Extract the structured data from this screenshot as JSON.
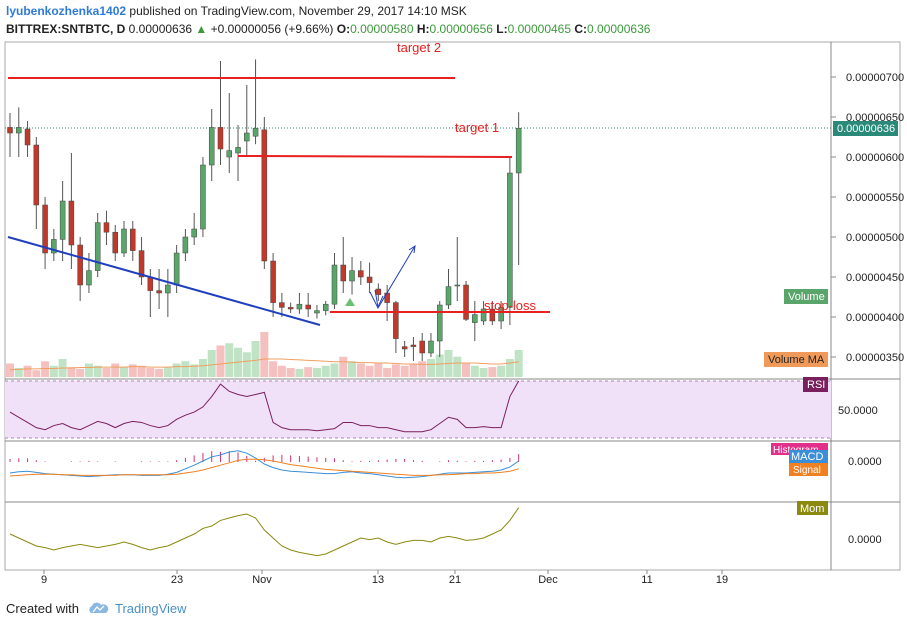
{
  "header": {
    "author": "lyubenkozhenka1402",
    "published_text": " published on TradingView.com, November 29, 2017 14:10 MSK",
    "symbol": "BITTREX:SNTBTC, D",
    "last_price": "0.00000636",
    "change_arrow": "▲",
    "change": "+0.00000056 (+9.66%)",
    "o_label": "O:",
    "o_value": "0.00000580",
    "h_label": "H:",
    "h_value": "0.00000656",
    "l_label": "L:",
    "l_value": "0.00000465",
    "c_label": "C:",
    "c_value": "0.00000636"
  },
  "footer": {
    "created_with": "Created with",
    "brand": "TradingView"
  },
  "colors": {
    "up": "#5aa66a",
    "down": "#c0392b",
    "trend_line": "#1f3fbf",
    "level_line": "#e82020",
    "rsi_fill": "#f0e0f8",
    "rsi_line": "#7a1f5e",
    "macd_line": "#3a8fd8",
    "signal_line": "#f08020",
    "mom_line": "#8a8a10"
  },
  "chart_data": {
    "type": "candlestick",
    "y_ticks": [
      "0.00000700",
      "0.00000650",
      "0.00000600",
      "0.00000550",
      "0.00000500",
      "0.00000450",
      "0.00000400",
      "0.00000350"
    ],
    "ylim": [
      3.21e-06,
      7.8e-06
    ],
    "last_price_label": "0.00000636",
    "x_ticks": [
      "9",
      "23",
      "Nov",
      "13",
      "21",
      "Dec",
      "11",
      "19"
    ],
    "annotations": {
      "target2": {
        "text": "target 2",
        "price": 7e-06
      },
      "target1": {
        "text": "target 1",
        "price": 6.02e-06
      },
      "stop_loss": {
        "text": "stop-loss",
        "price": 4.06e-06
      }
    },
    "candles": [
      {
        "o": 6.37e-06,
        "h": 6.55e-06,
        "l": 6e-06,
        "c": 6.3e-06
      },
      {
        "o": 6.3e-06,
        "h": 6.62e-06,
        "l": 6e-06,
        "c": 6.37e-06
      },
      {
        "o": 6.35e-06,
        "h": 6.45e-06,
        "l": 6e-06,
        "c": 6.15e-06
      },
      {
        "o": 6.15e-06,
        "h": 6.25e-06,
        "l": 5.1e-06,
        "c": 5.4e-06
      },
      {
        "o": 5.4e-06,
        "h": 5.5e-06,
        "l": 4.6e-06,
        "c": 4.8e-06
      },
      {
        "o": 4.8e-06,
        "h": 5.1e-06,
        "l": 4.7e-06,
        "c": 4.97e-06
      },
      {
        "o": 4.97e-06,
        "h": 5.7e-06,
        "l": 4.7e-06,
        "c": 5.45e-06
      },
      {
        "o": 5.45e-06,
        "h": 6.05e-06,
        "l": 4.6e-06,
        "c": 4.9e-06
      },
      {
        "o": 4.9e-06,
        "h": 5e-06,
        "l": 4.2e-06,
        "c": 4.4e-06
      },
      {
        "o": 4.4e-06,
        "h": 4.8e-06,
        "l": 4.3e-06,
        "c": 4.58e-06
      },
      {
        "o": 4.58e-06,
        "h": 5.3e-06,
        "l": 4.5e-06,
        "c": 5.18e-06
      },
      {
        "o": 5.18e-06,
        "h": 5.33e-06,
        "l": 4.9e-06,
        "c": 5.06e-06
      },
      {
        "o": 5.06e-06,
        "h": 5.15e-06,
        "l": 4.7e-06,
        "c": 4.8e-06
      },
      {
        "o": 4.8e-06,
        "h": 5.2e-06,
        "l": 4.75e-06,
        "c": 5.1e-06
      },
      {
        "o": 5.1e-06,
        "h": 5.2e-06,
        "l": 4.7e-06,
        "c": 4.83e-06
      },
      {
        "o": 4.83e-06,
        "h": 5e-06,
        "l": 4.4e-06,
        "c": 4.5e-06
      },
      {
        "o": 4.5e-06,
        "h": 4.6e-06,
        "l": 4e-06,
        "c": 4.33e-06
      },
      {
        "o": 4.33e-06,
        "h": 4.6e-06,
        "l": 4.1e-06,
        "c": 4.3e-06
      },
      {
        "o": 4.3e-06,
        "h": 4.6e-06,
        "l": 4e-06,
        "c": 4.4e-06
      },
      {
        "o": 4.4e-06,
        "h": 4.9e-06,
        "l": 4.3e-06,
        "c": 4.8e-06
      },
      {
        "o": 4.8e-06,
        "h": 5.1e-06,
        "l": 4.7e-06,
        "c": 5e-06
      },
      {
        "o": 5e-06,
        "h": 5.3e-06,
        "l": 4.9e-06,
        "c": 5.1e-06
      },
      {
        "o": 5.1e-06,
        "h": 6e-06,
        "l": 5e-06,
        "c": 5.9e-06
      },
      {
        "o": 5.9e-06,
        "h": 6.6e-06,
        "l": 5.7e-06,
        "c": 6.37e-06
      },
      {
        "o": 6.37e-06,
        "h": 7.2e-06,
        "l": 5.9e-06,
        "c": 6.1e-06
      },
      {
        "o": 6e-06,
        "h": 6.8e-06,
        "l": 5.8e-06,
        "c": 6.08e-06
      },
      {
        "o": 6.05e-06,
        "h": 6.4e-06,
        "l": 5.7e-06,
        "c": 6.12e-06
      },
      {
        "o": 6.2e-06,
        "h": 6.9e-06,
        "l": 6e-06,
        "c": 6.3e-06
      },
      {
        "o": 6.26e-06,
        "h": 7.22e-06,
        "l": 6.16e-06,
        "c": 6.36e-06
      },
      {
        "o": 6.34e-06,
        "h": 6.5e-06,
        "l": 4.6e-06,
        "c": 4.7e-06
      },
      {
        "o": 4.7e-06,
        "h": 4.8e-06,
        "l": 4e-06,
        "c": 4.18e-06
      },
      {
        "o": 4.18e-06,
        "h": 4.3e-06,
        "l": 4e-06,
        "c": 4.12e-06
      },
      {
        "o": 4.12e-06,
        "h": 4.18e-06,
        "l": 4.05e-06,
        "c": 4.1e-06
      },
      {
        "o": 4.1e-06,
        "h": 4.3e-06,
        "l": 4.04e-06,
        "c": 4.16e-06
      },
      {
        "o": 4.15e-06,
        "h": 4.3e-06,
        "l": 4e-06,
        "c": 4.1e-06
      },
      {
        "o": 4.05e-06,
        "h": 4.15e-06,
        "l": 3.98e-06,
        "c": 4.08e-06
      },
      {
        "o": 4.08e-06,
        "h": 4.2e-06,
        "l": 4.02e-06,
        "c": 4.16e-06
      },
      {
        "o": 4.16e-06,
        "h": 4.8e-06,
        "l": 4.1e-06,
        "c": 4.65e-06
      },
      {
        "o": 4.65e-06,
        "h": 5e-06,
        "l": 4.3e-06,
        "c": 4.45e-06
      },
      {
        "o": 4.45e-06,
        "h": 4.75e-06,
        "l": 4.28e-06,
        "c": 4.58e-06
      },
      {
        "o": 4.58e-06,
        "h": 4.7e-06,
        "l": 4.4e-06,
        "c": 4.5e-06
      },
      {
        "o": 4.5e-06,
        "h": 4.68e-06,
        "l": 4.3e-06,
        "c": 4.43e-06
      },
      {
        "o": 4.35e-06,
        "h": 4.42e-06,
        "l": 4.2e-06,
        "c": 4.28e-06
      },
      {
        "o": 4.3e-06,
        "h": 4.4e-06,
        "l": 3.95e-06,
        "c": 4.18e-06
      },
      {
        "o": 4.18e-06,
        "h": 4.2e-06,
        "l": 3.55e-06,
        "c": 3.73e-06
      },
      {
        "o": 3.63e-06,
        "h": 3.7e-06,
        "l": 3.5e-06,
        "c": 3.6e-06
      },
      {
        "o": 3.65e-06,
        "h": 3.75e-06,
        "l": 3.45e-06,
        "c": 3.63e-06
      },
      {
        "o": 3.7e-06,
        "h": 3.8e-06,
        "l": 3.45e-06,
        "c": 3.55e-06
      },
      {
        "o": 3.55e-06,
        "h": 3.8e-06,
        "l": 3.5e-06,
        "c": 3.7e-06
      },
      {
        "o": 3.7e-06,
        "h": 4.2e-06,
        "l": 3.5e-06,
        "c": 4.15e-06
      },
      {
        "o": 4.15e-06,
        "h": 4.6e-06,
        "l": 4.1e-06,
        "c": 4.38e-06
      },
      {
        "o": 4.4e-06,
        "h": 5e-06,
        "l": 4.2e-06,
        "c": 4.4e-06
      },
      {
        "o": 4.4e-06,
        "h": 4.45e-06,
        "l": 3.95e-06,
        "c": 3.97e-06
      },
      {
        "o": 3.93e-06,
        "h": 4.2e-06,
        "l": 3.7e-06,
        "c": 4.03e-06
      },
      {
        "o": 3.95e-06,
        "h": 4.2e-06,
        "l": 3.9e-06,
        "c": 4.1e-06
      },
      {
        "o": 4.1e-06,
        "h": 4.2e-06,
        "l": 3.9e-06,
        "c": 3.95e-06
      },
      {
        "o": 3.95e-06,
        "h": 4.2e-06,
        "l": 3.85e-06,
        "c": 4.12e-06
      },
      {
        "o": 4.12e-06,
        "h": 6e-06,
        "l": 3.9e-06,
        "c": 5.8e-06
      },
      {
        "o": 5.8e-06,
        "h": 6.56e-06,
        "l": 4.65e-06,
        "c": 6.36e-06
      }
    ],
    "volume": [
      30,
      20,
      25,
      15,
      35,
      25,
      40,
      22,
      18,
      30,
      25,
      20,
      30,
      22,
      28,
      25,
      20,
      18,
      22,
      30,
      35,
      28,
      40,
      60,
      70,
      75,
      65,
      55,
      80,
      100,
      35,
      25,
      20,
      18,
      22,
      20,
      25,
      30,
      45,
      35,
      30,
      25,
      30,
      20,
      28,
      25,
      30,
      35,
      40,
      50,
      60,
      45,
      30,
      25,
      20,
      22,
      25,
      40,
      60
    ],
    "volume_ma": [
      16,
      17,
      18,
      18,
      19,
      19,
      20,
      20,
      21,
      21,
      22,
      22,
      22,
      22,
      23,
      23,
      22,
      22,
      22,
      23,
      23,
      24,
      25,
      27,
      29,
      31,
      33,
      35,
      37,
      40,
      40,
      40,
      39,
      38,
      37,
      36,
      35,
      34,
      34,
      33,
      32,
      32,
      31,
      31,
      30,
      29,
      29,
      28,
      28,
      29,
      30,
      31,
      31,
      31,
      30,
      29,
      29,
      31,
      34
    ],
    "indicators": {
      "volume_label": "Volume",
      "volume_ma_label": "Volume MA",
      "rsi_label": "RSI",
      "rsi_tick": "50.0000",
      "rsi": [
        55,
        50,
        45,
        40,
        38,
        42,
        44,
        40,
        38,
        42,
        46,
        44,
        40,
        44,
        46,
        45,
        42,
        40,
        42,
        48,
        52,
        55,
        60,
        70,
        82,
        75,
        72,
        70,
        72,
        74,
        45,
        40,
        38,
        38,
        38,
        37,
        38,
        39,
        45,
        45,
        42,
        42,
        40,
        40,
        38,
        36,
        36,
        36,
        38,
        44,
        50,
        48,
        40,
        40,
        41,
        40,
        40,
        70,
        85
      ],
      "macd_tick": "0.0000",
      "macd_labels": [
        "Histogram",
        "MACD",
        "Signal"
      ],
      "macd": [
        -5,
        -3,
        -2,
        -4,
        -6,
        -7,
        -8,
        -9,
        -10,
        -11,
        -10,
        -9,
        -8,
        -8,
        -8,
        -9,
        -9,
        -9,
        -7,
        -4,
        2,
        8,
        15,
        22,
        25,
        30,
        32,
        28,
        20,
        10,
        4,
        0,
        -2,
        -3,
        -4,
        -5,
        -6,
        -6,
        -4,
        -3,
        -5,
        -6,
        -8,
        -10,
        -12,
        -13,
        -12,
        -11,
        -9,
        -7,
        -5,
        -5,
        -5,
        -4,
        -3,
        -2,
        0,
        5,
        15
      ],
      "signal": [
        -10,
        -9,
        -8,
        -7,
        -7,
        -7,
        -8,
        -8,
        -9,
        -9,
        -9,
        -9,
        -9,
        -8,
        -8,
        -8,
        -8,
        -8,
        -8,
        -7,
        -5,
        -3,
        0,
        4,
        8,
        12,
        16,
        18,
        18,
        17,
        15,
        12,
        9,
        7,
        5,
        3,
        1,
        0,
        -1,
        -2,
        -3,
        -4,
        -5,
        -6,
        -7,
        -8,
        -9,
        -9,
        -9,
        -8,
        -8,
        -7,
        -6,
        -6,
        -5,
        -5,
        -4,
        -2,
        2
      ],
      "mom_label": "Mom",
      "mom_tick": "0.0000",
      "mom": [
        5,
        0,
        -5,
        -10,
        -12,
        -15,
        -12,
        -10,
        -8,
        -10,
        -12,
        -10,
        -8,
        -5,
        -8,
        -12,
        -15,
        -12,
        -10,
        -5,
        0,
        5,
        12,
        15,
        22,
        25,
        28,
        30,
        25,
        10,
        0,
        -10,
        -15,
        -18,
        -20,
        -22,
        -20,
        -15,
        -10,
        -5,
        0,
        -2,
        0,
        -5,
        -8,
        -5,
        -3,
        -3,
        -5,
        0,
        2,
        0,
        -3,
        -2,
        0,
        5,
        10,
        22,
        38
      ]
    }
  }
}
